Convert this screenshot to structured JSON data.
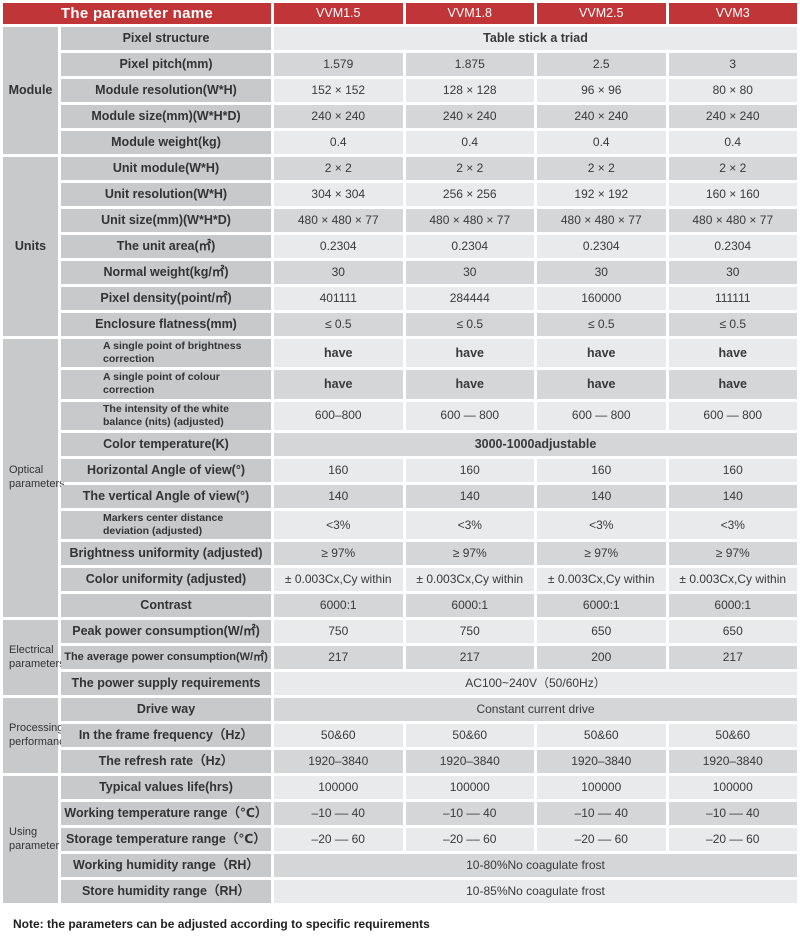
{
  "header": {
    "param_col_label": "The parameter name",
    "columns": [
      "VVM1.5",
      "VVM1.8",
      "VVM2.5",
      "VVM3"
    ]
  },
  "sections": [
    {
      "group": "Module",
      "rows": [
        {
          "label": "Pixel structure",
          "span": "Table stick a triad",
          "span_bold": true
        },
        {
          "label": "Pixel pitch(mm)",
          "values": [
            "1.579",
            "1.875",
            "2.5",
            "3"
          ]
        },
        {
          "label": "Module resolution(W*H)",
          "values": [
            "152 × 152",
            "128 × 128",
            "96 × 96",
            "80 × 80"
          ]
        },
        {
          "label": "Module size(mm)(W*H*D)",
          "values": [
            "240 × 240",
            "240 × 240",
            "240 × 240",
            "240 × 240"
          ]
        },
        {
          "label": "Module weight(kg)",
          "values": [
            "0.4",
            "0.4",
            "0.4",
            "0.4"
          ]
        }
      ]
    },
    {
      "group": "Units",
      "rows": [
        {
          "label": "Unit module(W*H)",
          "values": [
            "2 × 2",
            "2 × 2",
            "2 × 2",
            "2 × 2"
          ]
        },
        {
          "label": "Unit resolution(W*H)",
          "values": [
            "304 × 304",
            "256 × 256",
            "192 × 192",
            "160 × 160"
          ]
        },
        {
          "label": "Unit size(mm)(W*H*D)",
          "values": [
            "480 × 480 × 77",
            "480 × 480 × 77",
            "480 × 480 × 77",
            "480 × 480 × 77"
          ]
        },
        {
          "label": "The unit area(㎡)",
          "values": [
            "0.2304",
            "0.2304",
            "0.2304",
            "0.2304"
          ]
        },
        {
          "label": "Normal weight(kg/㎡)",
          "values": [
            "30",
            "30",
            "30",
            "30"
          ]
        },
        {
          "label": "Pixel density(point/㎡)",
          "values": [
            "401111",
            "284444",
            "160000",
            "111111"
          ]
        },
        {
          "label": "Enclosure flatness(mm)",
          "values": [
            "≤ 0.5",
            "≤ 0.5",
            "≤ 0.5",
            "≤ 0.5"
          ]
        }
      ]
    },
    {
      "group": "Optical parameters",
      "rows": [
        {
          "label": "A single point of brightness correction",
          "small": true,
          "values": [
            "have",
            "have",
            "have",
            "have"
          ],
          "values_bold": true
        },
        {
          "label": "A single point of colour correction",
          "small": true,
          "values": [
            "have",
            "have",
            "have",
            "have"
          ],
          "values_bold": true
        },
        {
          "label": "The intensity of the white balance (nits) (adjusted)",
          "small": true,
          "values": [
            "600–800",
            "600 — 800",
            "600 — 800",
            "600 — 800"
          ]
        },
        {
          "label": "Color temperature(K)",
          "span": "3000-1000adjustable",
          "span_bold": true
        },
        {
          "label": "Horizontal Angle of view(°)",
          "values": [
            "160",
            "160",
            "160",
            "160"
          ]
        },
        {
          "label": "The vertical Angle of view(°)",
          "values": [
            "140",
            "140",
            "140",
            "140"
          ]
        },
        {
          "label": "Markers center distance deviation (adjusted)",
          "small": true,
          "values": [
            "<3%",
            "<3%",
            "<3%",
            "<3%"
          ]
        },
        {
          "label": "Brightness uniformity (adjusted)",
          "values": [
            "≥ 97%",
            "≥ 97%",
            "≥ 97%",
            "≥ 97%"
          ]
        },
        {
          "label": "Color uniformity (adjusted)",
          "values": [
            "± 0.003Cx,Cy within",
            "± 0.003Cx,Cy within",
            "± 0.003Cx,Cy within",
            "± 0.003Cx,Cy within"
          ]
        },
        {
          "label": "Contrast",
          "values": [
            "6000:1",
            "6000:1",
            "6000:1",
            "6000:1"
          ]
        }
      ]
    },
    {
      "group": "Electrical parameters",
      "rows": [
        {
          "label": "Peak power consumption(W/㎡)",
          "values": [
            "750",
            "750",
            "650",
            "650"
          ]
        },
        {
          "label": "The average power consumption(W/㎡)",
          "compact": true,
          "values": [
            "217",
            "217",
            "200",
            "217"
          ]
        },
        {
          "label": "The power supply requirements",
          "span": "AC100~240V（50/60Hz）"
        }
      ]
    },
    {
      "group": "Processing performance",
      "rows": [
        {
          "label": "Drive way",
          "span": "Constant current drive"
        },
        {
          "label": "In the frame frequency（Hz）",
          "values": [
            "50&60",
            "50&60",
            "50&60",
            "50&60"
          ]
        },
        {
          "label": "The refresh rate（Hz）",
          "values": [
            "1920–3840",
            "1920–3840",
            "1920–3840",
            "1920–3840"
          ]
        }
      ]
    },
    {
      "group": "Using parameter",
      "rows": [
        {
          "label": "Typical values life(hrs)",
          "values": [
            "100000",
            "100000",
            "100000",
            "100000"
          ]
        },
        {
          "label": "Working temperature range（℃）",
          "values": [
            "–10 –– 40",
            "–10 –– 40",
            "–10 –– 40",
            "–10 –– 40"
          ]
        },
        {
          "label": "Storage temperature range（℃）",
          "values": [
            "–20 –– 60",
            "–20 –– 60",
            "–20 –– 60",
            "–20 –– 60"
          ]
        },
        {
          "label": "Working humidity range（RH）",
          "span": "10-80%No coagulate frost"
        },
        {
          "label": "Store humidity range（RH）",
          "span": "10-85%No coagulate frost"
        }
      ]
    }
  ],
  "note": "Note: the parameters can be adjusted according to specific requirements",
  "colors": {
    "header_red": "#bf3538",
    "label_gray": "#c8c9cb",
    "row_light": "#e9eaec",
    "row_dark": "#d5d6d8"
  }
}
